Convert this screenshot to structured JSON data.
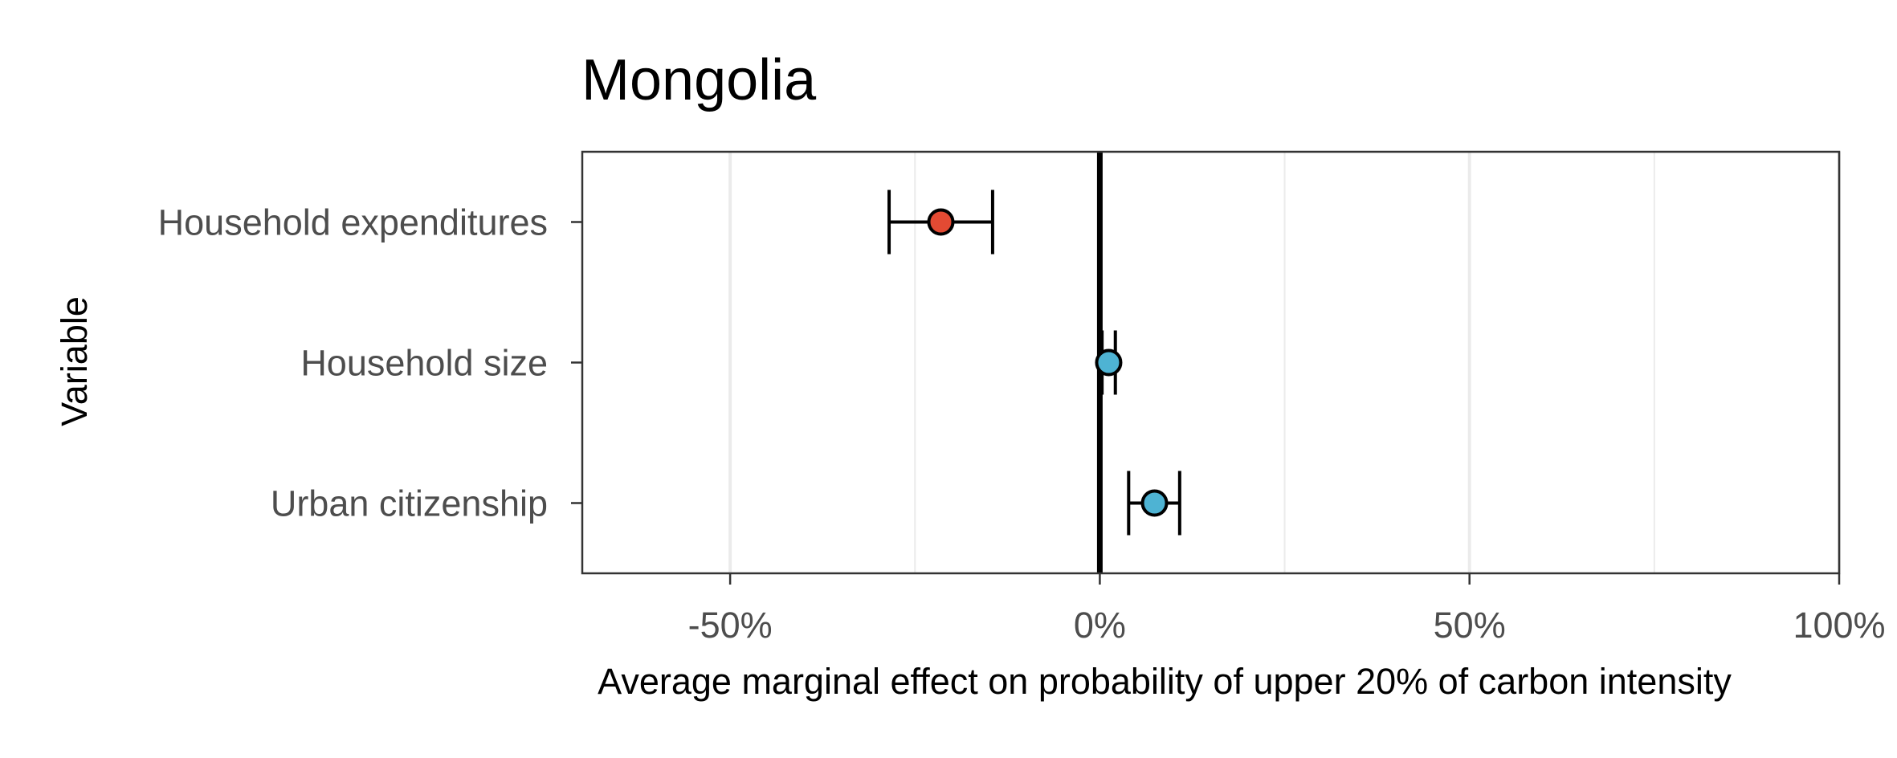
{
  "chart_data": {
    "type": "scatter",
    "subtype": "dot-and-whisker",
    "title": "Mongolia",
    "xlabel": "Average marginal effect on probability of upper 20% of carbon intensity",
    "ylabel": "Variable",
    "xlim": [
      -0.7,
      1.0
    ],
    "xticks": [
      -0.5,
      0,
      0.5,
      1.0
    ],
    "xtick_labels": [
      "-50%",
      "0%",
      "50%",
      "100%"
    ],
    "minor_gridlines": [
      -0.25,
      0.25,
      0.75
    ],
    "reference_line": 0,
    "grid": "vertical",
    "categories": [
      "Household expenditures",
      "Household size",
      "Urban citizenship"
    ],
    "points": [
      {
        "variable": "Household expenditures",
        "estimate": -0.215,
        "ci_low": -0.285,
        "ci_high": -0.145,
        "color": "#e34a33"
      },
      {
        "variable": "Household size",
        "estimate": 0.012,
        "ci_low": 0.003,
        "ci_high": 0.021,
        "color": "#4eb3d3"
      },
      {
        "variable": "Urban citizenship",
        "estimate": 0.074,
        "ci_low": 0.039,
        "ci_high": 0.108,
        "color": "#4eb3d3"
      }
    ]
  }
}
